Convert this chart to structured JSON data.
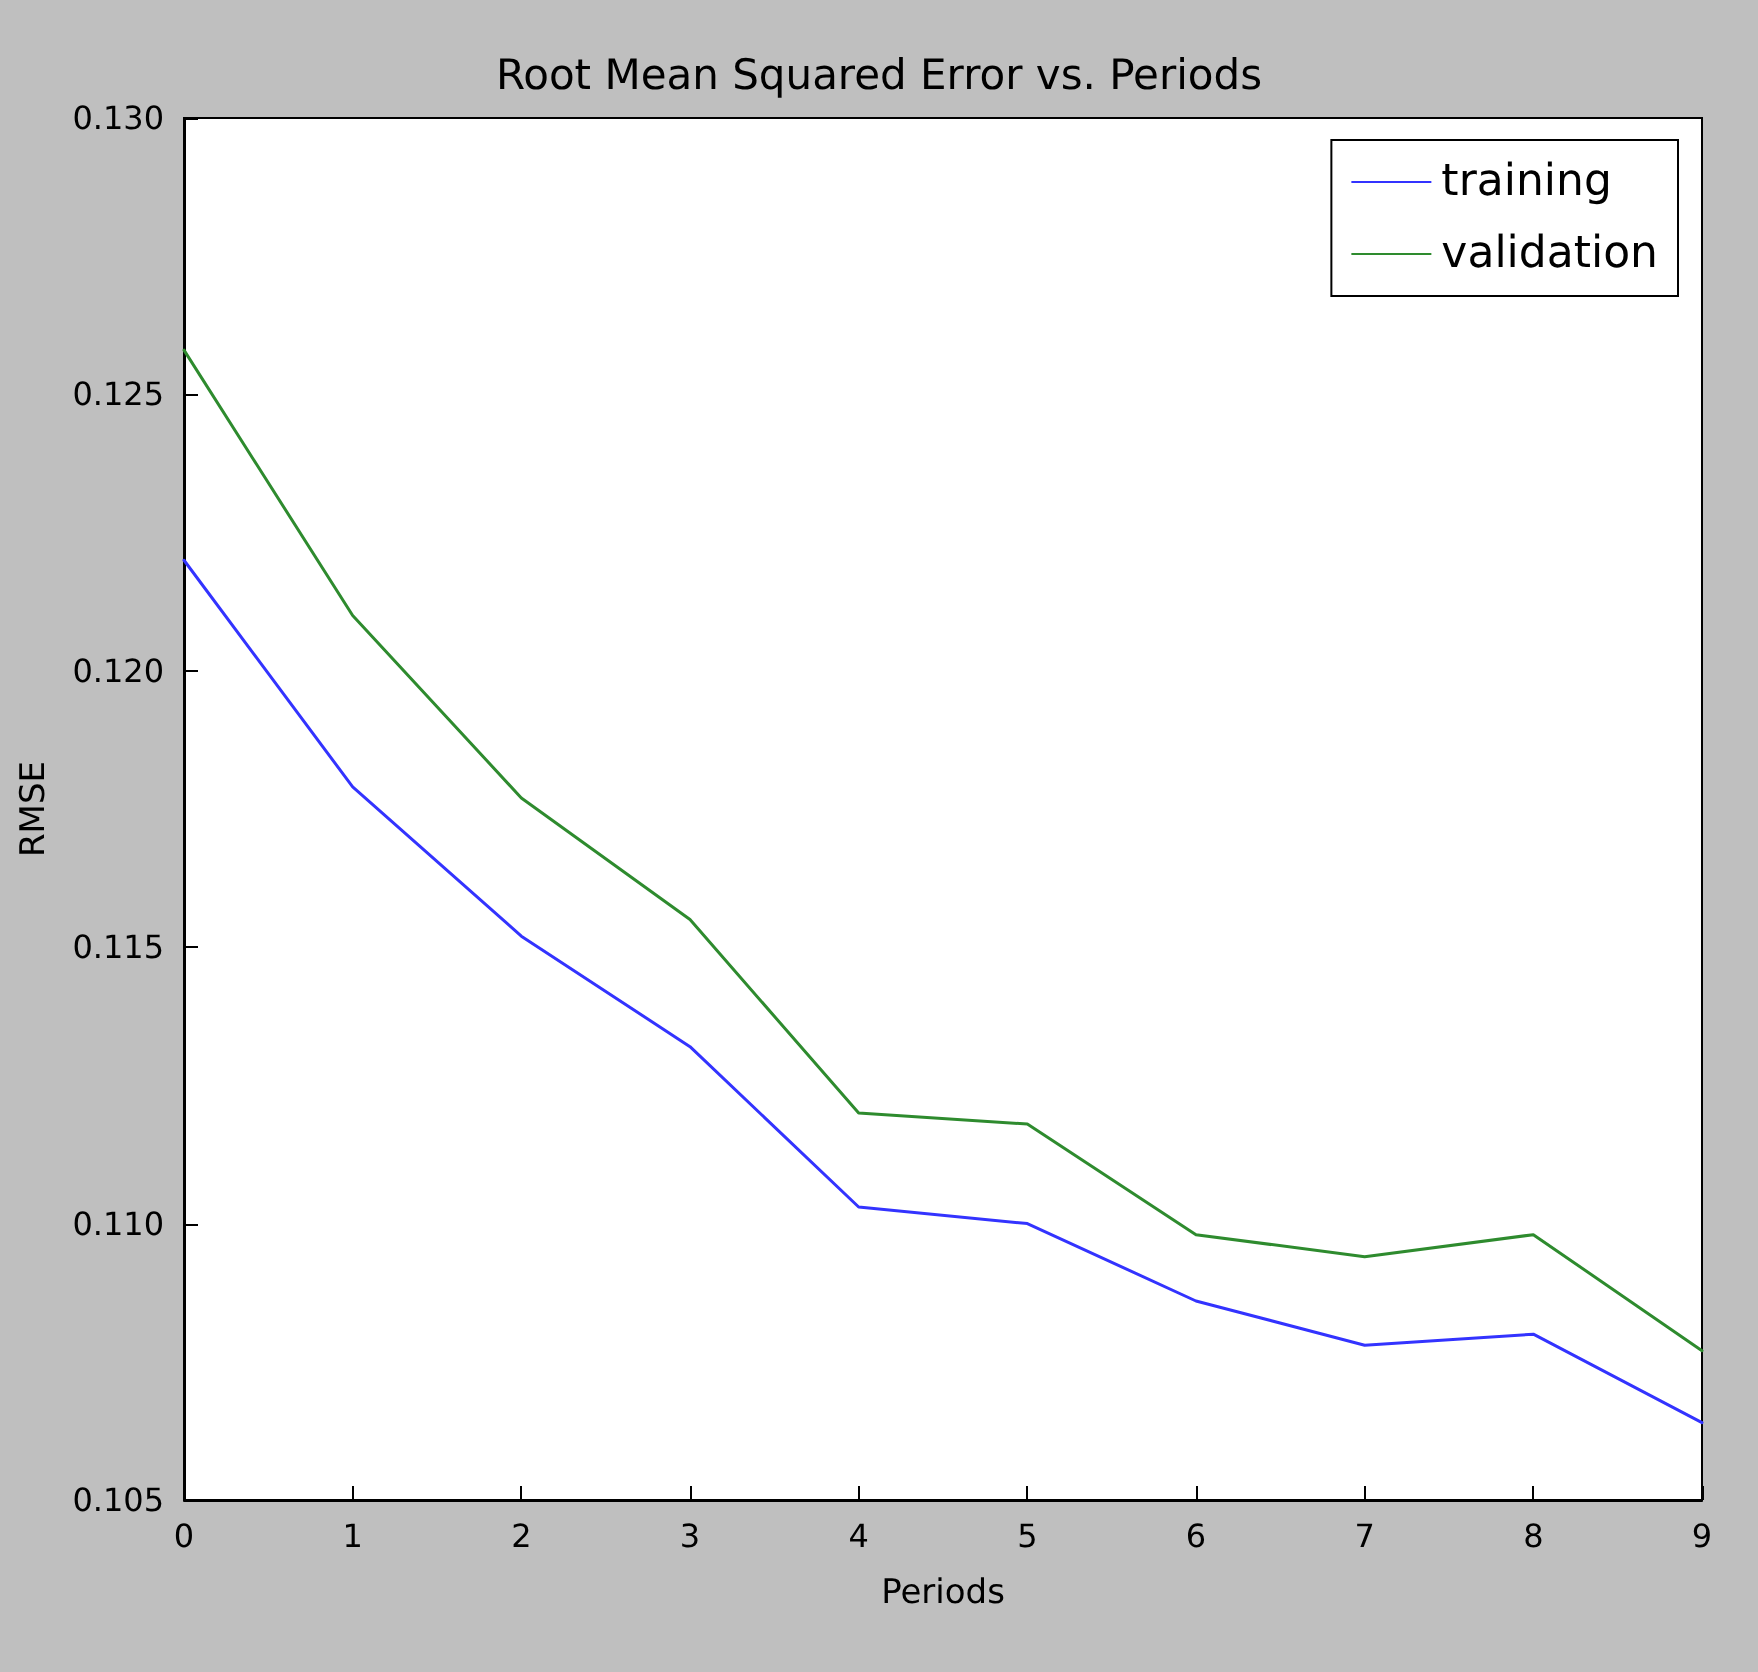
{
  "chart_data": {
    "type": "line",
    "title": "Root Mean Squared Error vs. Periods",
    "xlabel": "Periods",
    "ylabel": "RMSE",
    "x": [
      0,
      1,
      2,
      3,
      4,
      5,
      6,
      7,
      8,
      9
    ],
    "series": [
      {
        "name": "training",
        "color": "#3333ff",
        "values": [
          0.122,
          0.1179,
          0.1152,
          0.1132,
          0.1103,
          0.11,
          0.1086,
          0.1078,
          0.108,
          0.1064
        ]
      },
      {
        "name": "validation",
        "color": "#2e8b2e",
        "values": [
          0.1258,
          0.121,
          0.1177,
          0.1155,
          0.112,
          0.1118,
          0.1098,
          0.1094,
          0.1098,
          0.1077
        ]
      }
    ],
    "xlim": [
      0,
      9
    ],
    "xticks": [
      0,
      1,
      2,
      3,
      4,
      5,
      6,
      7,
      8,
      9
    ],
    "ylim": [
      0.105,
      0.13
    ],
    "yticks": [
      {
        "value": 0.105,
        "label": "0.105"
      },
      {
        "value": 0.11,
        "label": "0.110"
      },
      {
        "value": 0.115,
        "label": "0.115"
      },
      {
        "value": 0.12,
        "label": "0.120"
      },
      {
        "value": 0.125,
        "label": "0.125"
      },
      {
        "value": 0.13,
        "label": "0.130"
      }
    ],
    "legend": "top right",
    "marker": "none",
    "line_style": "solid",
    "grid": false
  }
}
